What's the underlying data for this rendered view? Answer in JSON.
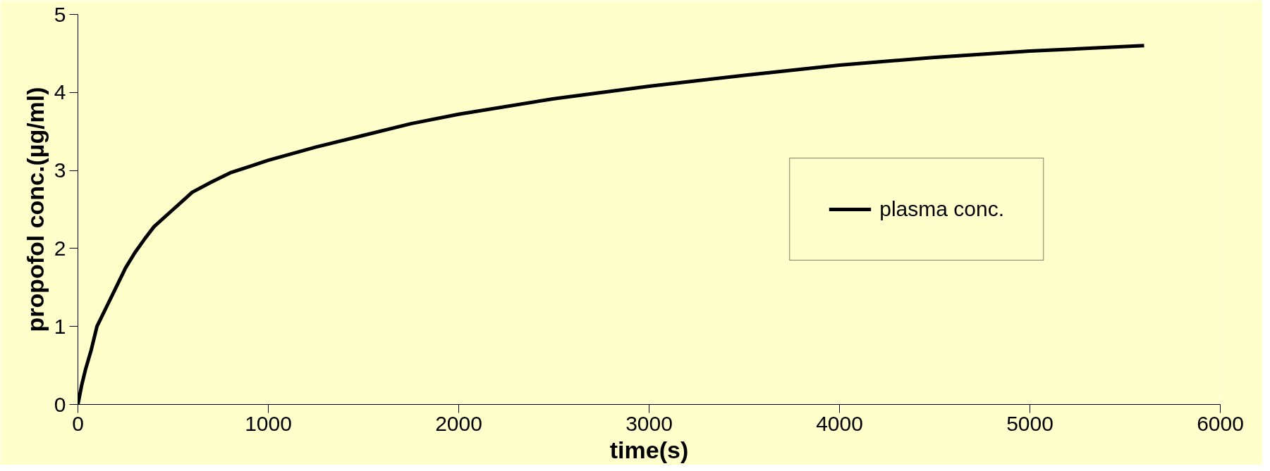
{
  "chart_data": {
    "type": "line",
    "xlabel": "time(s)",
    "ylabel": "propofol conc.(µg/ml)",
    "x": [
      0,
      20,
      40,
      70,
      100,
      150,
      200,
      250,
      300,
      350,
      400,
      500,
      600,
      700,
      800,
      900,
      1000,
      1250,
      1500,
      1750,
      2000,
      2500,
      3000,
      3500,
      4000,
      4500,
      5000,
      5600
    ],
    "series": [
      {
        "name": "plasma conc.",
        "color": "#000000",
        "values": [
          0,
          0.25,
          0.45,
          0.7,
          1.0,
          1.25,
          1.5,
          1.75,
          1.95,
          2.12,
          2.28,
          2.5,
          2.72,
          2.85,
          2.97,
          3.05,
          3.13,
          3.3,
          3.45,
          3.6,
          3.72,
          3.92,
          4.08,
          4.22,
          4.35,
          4.45,
          4.53,
          4.6
        ]
      }
    ],
    "xlim": [
      0,
      6000
    ],
    "ylim": [
      0,
      5
    ],
    "xticks": [
      0,
      1000,
      2000,
      3000,
      4000,
      5000,
      6000
    ],
    "yticks": [
      0,
      1,
      2,
      3,
      4,
      5
    ],
    "grid": false,
    "legend": "right",
    "marker": "none",
    "line_style": "solid"
  }
}
